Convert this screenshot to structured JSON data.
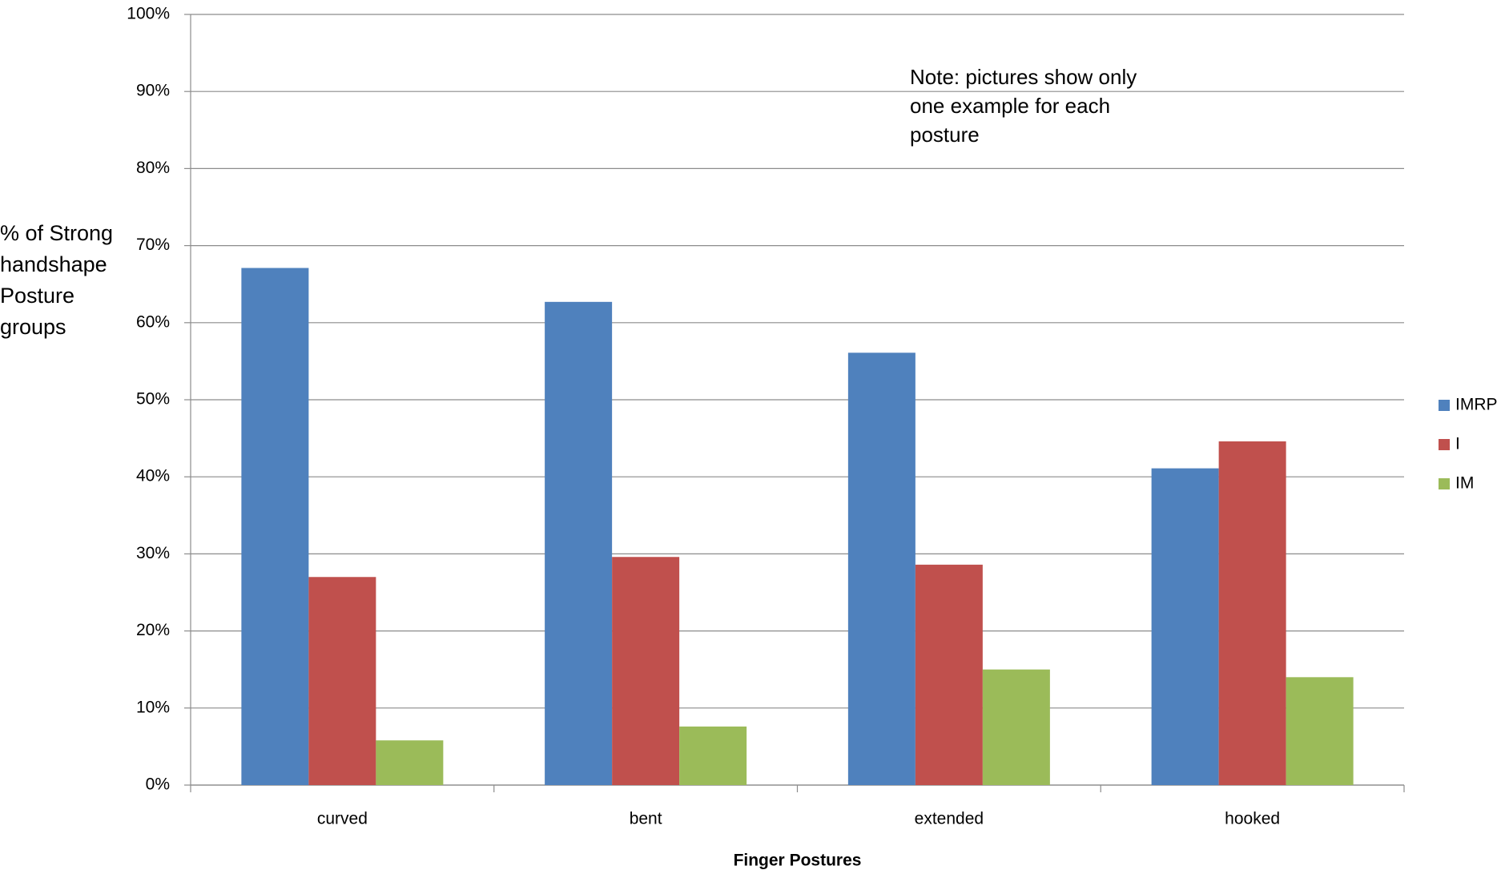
{
  "chart_data": {
    "type": "bar",
    "y_label": "% of Strong handshape Posture groups",
    "x_label": "Finger Postures",
    "annotation": "Note: pictures show only one example for each posture",
    "categories": [
      "curved",
      "bent",
      "extended",
      "hooked"
    ],
    "series": [
      {
        "name": "IMRP",
        "color": "#4f81bd",
        "values": [
          67.1,
          62.7,
          56.1,
          41.1
        ]
      },
      {
        "name": "I",
        "color": "#c0504d",
        "values": [
          27.0,
          29.6,
          28.6,
          44.6
        ]
      },
      {
        "name": "IM",
        "color": "#9bbb59",
        "values": [
          5.8,
          7.6,
          15.0,
          14.0
        ]
      }
    ],
    "ylim": [
      0,
      100
    ],
    "yticks": [
      {
        "value": 0,
        "label": "0%"
      },
      {
        "value": 10,
        "label": "10%"
      },
      {
        "value": 20,
        "label": "20%"
      },
      {
        "value": 30,
        "label": "30%"
      },
      {
        "value": 40,
        "label": "40%"
      },
      {
        "value": 50,
        "label": "50%"
      },
      {
        "value": 60,
        "label": "60%"
      },
      {
        "value": 70,
        "label": "70%"
      },
      {
        "value": 80,
        "label": "80%"
      },
      {
        "value": 90,
        "label": "90%"
      },
      {
        "value": 100,
        "label": "100%"
      }
    ],
    "grid": true,
    "legend": "right"
  }
}
